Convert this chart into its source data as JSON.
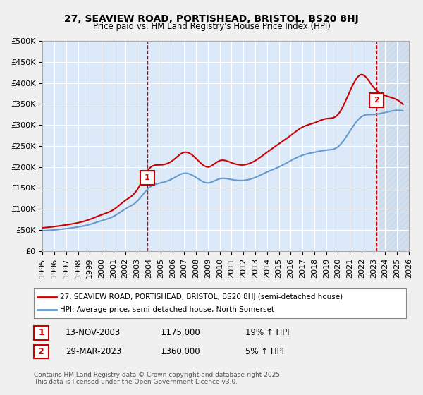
{
  "title": "27, SEAVIEW ROAD, PORTISHEAD, BRISTOL, BS20 8HJ",
  "subtitle": "Price paid vs. HM Land Registry's House Price Index (HPI)",
  "legend_line1": "27, SEAVIEW ROAD, PORTISHEAD, BRISTOL, BS20 8HJ (semi-detached house)",
  "legend_line2": "HPI: Average price, semi-detached house, North Somerset",
  "marker1_date": "13-NOV-2003",
  "marker1_price": 175000,
  "marker1_label": "19% ↑ HPI",
  "marker1_year": 2003.87,
  "marker2_date": "29-MAR-2023",
  "marker2_price": 360000,
  "marker2_label": "5% ↑ HPI",
  "marker2_year": 2023.25,
  "xmin": 1995,
  "xmax": 2026,
  "ymin": 0,
  "ymax": 500000,
  "yticks": [
    0,
    50000,
    100000,
    150000,
    200000,
    250000,
    300000,
    350000,
    400000,
    450000,
    500000
  ],
  "ylabel_format": "£{0}K",
  "background_color": "#dce9f8",
  "plot_bg": "#dce9f8",
  "hatch_color": "#b8c8d8",
  "red_line_color": "#cc0000",
  "blue_line_color": "#6699cc",
  "marker_box_color": "#cc0000",
  "vline_color": "#cc0000",
  "grid_color": "#ffffff",
  "footer": "Contains HM Land Registry data © Crown copyright and database right 2025.\nThis data is licensed under the Open Government Licence v3.0.",
  "hpi_base_years": [
    1995,
    1996,
    1997,
    1998,
    1999,
    2000,
    2001,
    2002,
    2003,
    2004,
    2005,
    2006,
    2007,
    2008,
    2009,
    2010,
    2011,
    2012,
    2013,
    2014,
    2015,
    2016,
    2017,
    2018,
    2019,
    2020,
    2021,
    2022,
    2023,
    2024,
    2025
  ],
  "hpi_values": [
    48000,
    50000,
    53000,
    57000,
    63000,
    72000,
    82000,
    100000,
    118000,
    150000,
    162000,
    172000,
    185000,
    175000,
    162000,
    172000,
    170000,
    168000,
    175000,
    188000,
    200000,
    215000,
    228000,
    235000,
    240000,
    248000,
    285000,
    320000,
    325000,
    330000,
    335000
  ],
  "price_years": [
    1995,
    1996,
    1997,
    1998,
    1999,
    2000,
    2001,
    2002,
    2003,
    2004,
    2005,
    2006,
    2007,
    2008,
    2009,
    2010,
    2011,
    2012,
    2013,
    2014,
    2015,
    2016,
    2017,
    2018,
    2019,
    2020,
    2021,
    2022,
    2023,
    2024,
    2025
  ],
  "price_values": [
    55000,
    58000,
    62000,
    67000,
    75000,
    86000,
    98000,
    120000,
    145000,
    195000,
    205000,
    215000,
    235000,
    220000,
    200000,
    215000,
    210000,
    205000,
    215000,
    235000,
    255000,
    275000,
    295000,
    305000,
    315000,
    325000,
    380000,
    420000,
    390000,
    370000,
    360000
  ]
}
